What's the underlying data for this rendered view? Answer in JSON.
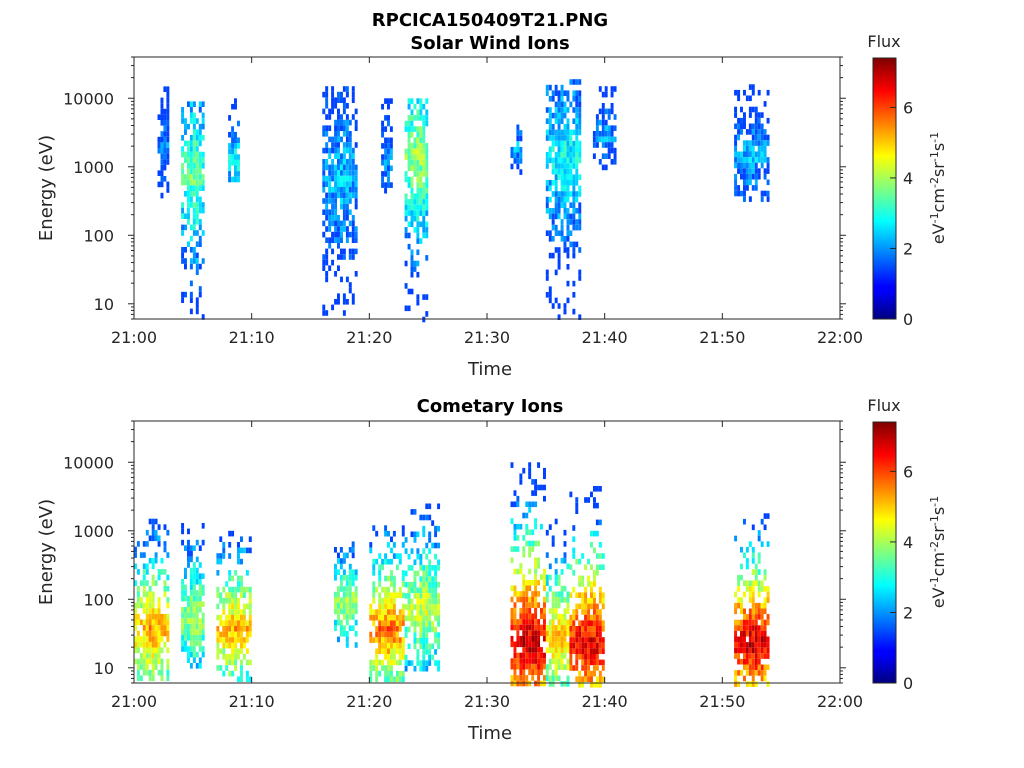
{
  "figure": {
    "title": "RPCICA150409T21.PNG"
  },
  "colorbar": {
    "title": "Flux",
    "label": "eV-1cm-2sr-1s-1",
    "min": 0,
    "max": 7.4,
    "ticks": [
      "0",
      "2",
      "4",
      "6"
    ],
    "colormap": "jet"
  },
  "chart_data": [
    {
      "type": "heatmap",
      "title": "Solar Wind Ions",
      "xlabel": "Time",
      "ylabel": "Energy (eV)",
      "y_scale": "log",
      "x_ticks": [
        "21:00",
        "21:10",
        "21:20",
        "21:30",
        "21:40",
        "21:50",
        "22:00"
      ],
      "y_ticks": [
        "10",
        "100",
        "1000",
        "10000"
      ],
      "xlim": [
        "21:00",
        "22:00"
      ],
      "ylim": [
        6,
        40000
      ],
      "bursts": [
        {
          "start": "21:02",
          "end": "21:03",
          "emin": 300,
          "emax": 18000,
          "peak_energy": 2500,
          "peak_flux": 2.2
        },
        {
          "start": "21:04",
          "end": "21:06",
          "emin": 6,
          "emax": 9000,
          "peak_energy": 800,
          "peak_flux": 3.8
        },
        {
          "start": "21:08",
          "end": "21:09",
          "emin": 700,
          "emax": 10000,
          "peak_energy": 1300,
          "peak_flux": 3.4
        },
        {
          "start": "21:16",
          "end": "21:19",
          "emin": 7,
          "emax": 15000,
          "peak_energy": 700,
          "peak_flux": 2.6
        },
        {
          "start": "21:21",
          "end": "21:22",
          "emin": 400,
          "emax": 10000,
          "peak_energy": 1500,
          "peak_flux": 2.4
        },
        {
          "start": "21:23",
          "end": "21:25",
          "emin": 6,
          "emax": 10000,
          "peak_energy": 1500,
          "peak_flux": 4.2
        },
        {
          "start": "21:32",
          "end": "21:33",
          "emin": 800,
          "emax": 5000,
          "peak_energy": 2000,
          "peak_flux": 2.5
        },
        {
          "start": "21:35",
          "end": "21:38",
          "emin": 7,
          "emax": 19000,
          "peak_energy": 1500,
          "peak_flux": 3.2
        },
        {
          "start": "21:39",
          "end": "21:41",
          "emin": 1000,
          "emax": 15000,
          "peak_energy": 3000,
          "peak_flux": 2.4
        },
        {
          "start": "21:51",
          "end": "21:54",
          "emin": 350,
          "emax": 16000,
          "peak_energy": 1500,
          "peak_flux": 2.6
        }
      ]
    },
    {
      "type": "heatmap",
      "title": "Cometary Ions",
      "xlabel": "Time",
      "ylabel": "Energy (eV)",
      "y_scale": "log",
      "x_ticks": [
        "21:00",
        "21:10",
        "21:20",
        "21:30",
        "21:40",
        "21:50",
        "22:00"
      ],
      "y_ticks": [
        "10",
        "100",
        "1000",
        "10000"
      ],
      "xlim": [
        "21:00",
        "22:00"
      ],
      "ylim": [
        6,
        40000
      ],
      "bursts": [
        {
          "start": "21:00",
          "end": "21:03",
          "emin": 7,
          "emax": 1500,
          "peak_energy": 40,
          "peak_flux": 5.6
        },
        {
          "start": "21:04",
          "end": "21:06",
          "emin": 10,
          "emax": 1300,
          "peak_energy": 60,
          "peak_flux": 4.4
        },
        {
          "start": "21:07",
          "end": "21:10",
          "emin": 7,
          "emax": 1000,
          "peak_energy": 40,
          "peak_flux": 5.5
        },
        {
          "start": "21:17",
          "end": "21:19",
          "emin": 20,
          "emax": 700,
          "peak_energy": 100,
          "peak_flux": 4.4
        },
        {
          "start": "21:20",
          "end": "21:23",
          "emin": 7,
          "emax": 1200,
          "peak_energy": 40,
          "peak_flux": 6.0
        },
        {
          "start": "21:23",
          "end": "21:26",
          "emin": 10,
          "emax": 2500,
          "peak_energy": 80,
          "peak_flux": 4.6
        },
        {
          "start": "21:32",
          "end": "21:35",
          "emin": 6,
          "emax": 10000,
          "peak_energy": 25,
          "peak_flux": 7.2
        },
        {
          "start": "21:35",
          "end": "21:37",
          "emin": 6,
          "emax": 1500,
          "peak_energy": 30,
          "peak_flux": 5.4
        },
        {
          "start": "21:37",
          "end": "21:40",
          "emin": 6,
          "emax": 4500,
          "peak_energy": 25,
          "peak_flux": 7.0
        },
        {
          "start": "21:51",
          "end": "21:54",
          "emin": 6,
          "emax": 1800,
          "peak_energy": 25,
          "peak_flux": 7.2
        }
      ]
    }
  ]
}
